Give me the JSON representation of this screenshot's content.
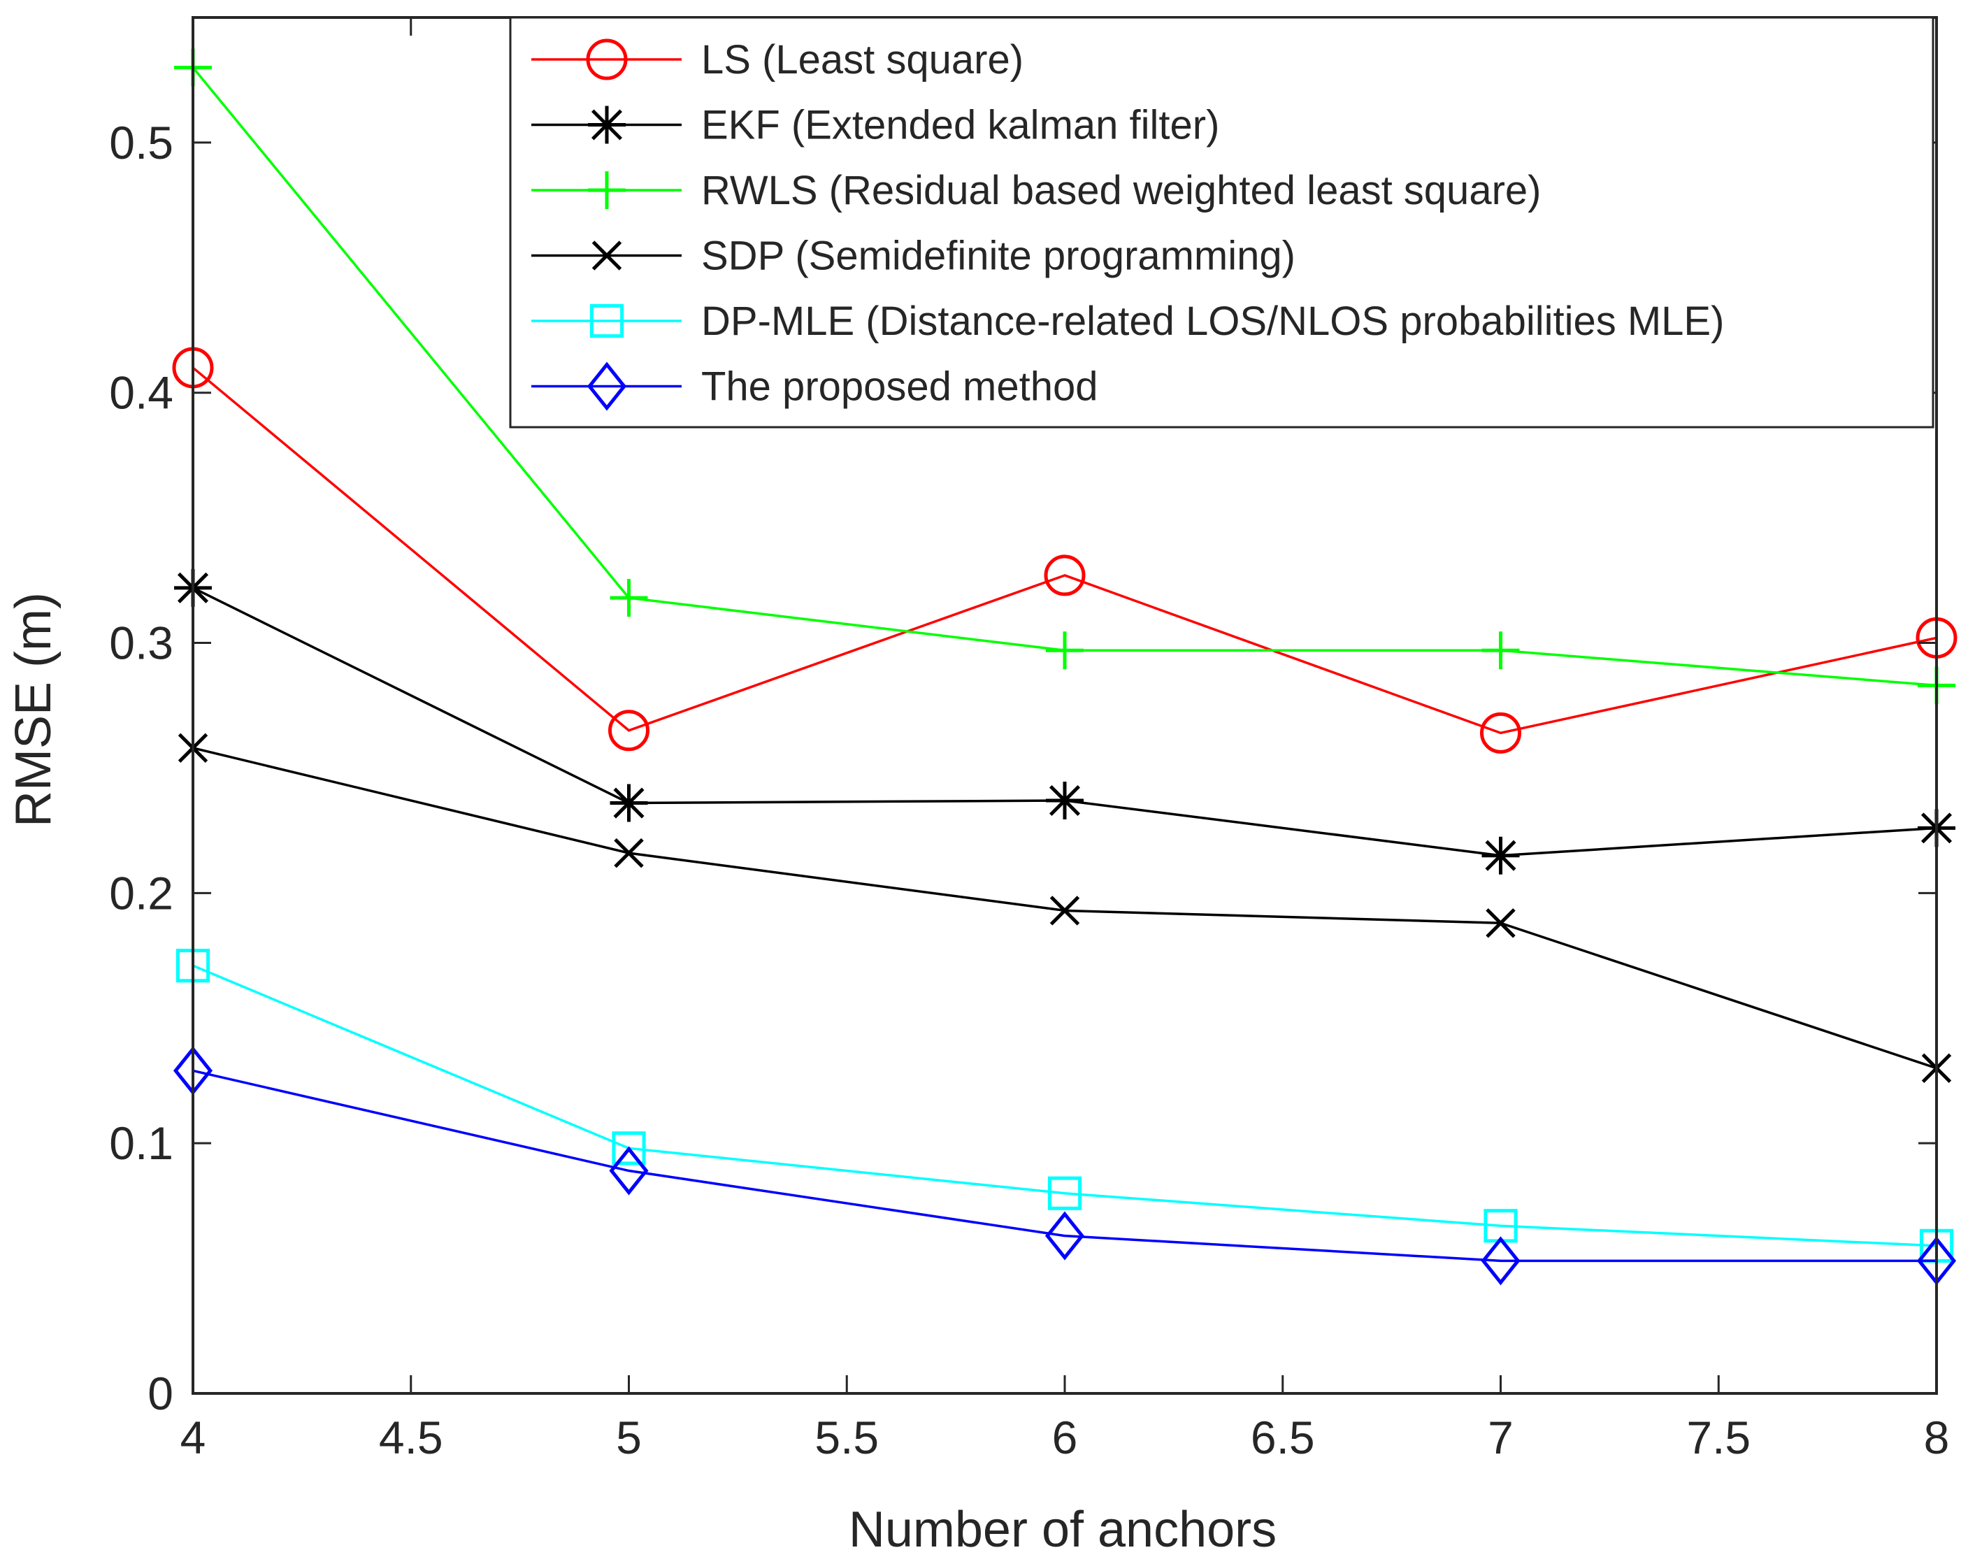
{
  "chart_data": {
    "type": "line",
    "title": "",
    "xlabel": "Number of anchors",
    "ylabel": "RMSE (m)",
    "xlim": [
      4,
      8
    ],
    "ylim": [
      0,
      0.55
    ],
    "xticks": [
      4,
      4.5,
      5,
      5.5,
      6,
      6.5,
      7,
      7.5,
      8
    ],
    "xtick_labels": [
      "4",
      "4.5",
      "5",
      "5.5",
      "6",
      "6.5",
      "7",
      "7.5",
      "8"
    ],
    "yticks": [
      0,
      0.1,
      0.2,
      0.3,
      0.4,
      0.5
    ],
    "ytick_labels": [
      "0",
      "0.1",
      "0.2",
      "0.3",
      "0.4",
      "0.5"
    ],
    "grid": false,
    "legend_position": "top-right",
    "x": [
      4,
      5,
      6,
      7,
      8
    ],
    "series": [
      {
        "name": "LS (Least square)",
        "color": "#ff0000",
        "marker": "circle",
        "values": [
          0.41,
          0.265,
          0.327,
          0.264,
          0.302
        ]
      },
      {
        "name": "EKF (Extended kalman filter)",
        "color": "#000000",
        "marker": "asterisk",
        "values": [
          0.322,
          0.236,
          0.237,
          0.215,
          0.226
        ]
      },
      {
        "name": "RWLS (Residual based weighted least square)",
        "color": "#00ff00",
        "marker": "plus",
        "values": [
          0.53,
          0.318,
          0.297,
          0.297,
          0.283
        ]
      },
      {
        "name": "SDP (Semidefinite programming)",
        "color": "#000000",
        "marker": "x",
        "values": [
          0.258,
          0.216,
          0.193,
          0.188,
          0.13
        ]
      },
      {
        "name": "DP-MLE (Distance-related LOS/NLOS probabilities MLE)",
        "color": "#00ffff",
        "marker": "square",
        "values": [
          0.171,
          0.098,
          0.08,
          0.067,
          0.059
        ]
      },
      {
        "name": "The proposed method",
        "color": "#0000ff",
        "marker": "diamond",
        "values": [
          0.129,
          0.089,
          0.063,
          0.053,
          0.053
        ]
      }
    ]
  }
}
